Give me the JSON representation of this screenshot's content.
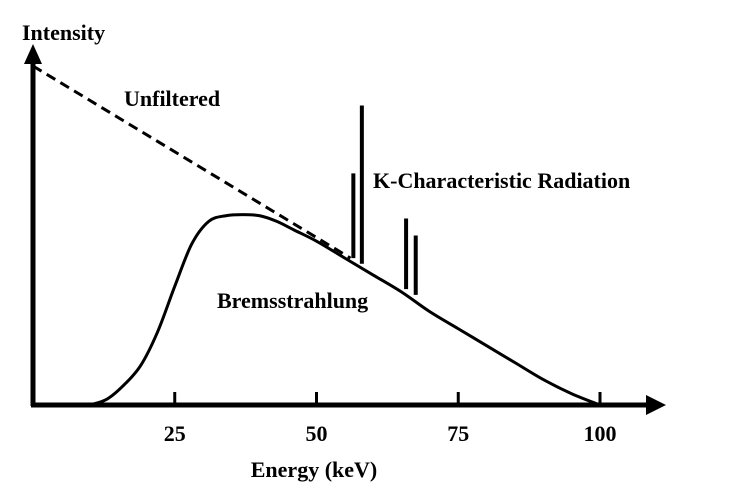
{
  "chart_data": {
    "type": "line",
    "xlabel": "Energy (keV)",
    "ylabel": "Intensity",
    "xlim": [
      0,
      110
    ],
    "x_ticks": [
      "25",
      "50",
      "75",
      "100"
    ],
    "annotations": {
      "unfiltered": "Unfiltered",
      "characteristic": "K-Characteristic Radiation",
      "bremsstrahlung": "Bremsstrahlung"
    },
    "series": [
      {
        "style": "dashed",
        "x": [
          0,
          56
        ],
        "y": [
          60,
          26
        ]
      },
      {
        "style": "solid",
        "x": [
          10,
          13,
          16,
          19,
          22,
          25,
          28,
          31,
          34,
          37,
          40,
          43,
          46,
          50,
          55,
          60,
          65,
          70,
          75,
          80,
          85,
          90,
          95,
          100
        ],
        "y": [
          0,
          1,
          3.5,
          7,
          13,
          21,
          28.5,
          32.5,
          33.5,
          33.7,
          33.5,
          32.5,
          31,
          29,
          26,
          23,
          20,
          16.5,
          13.5,
          10.5,
          7.5,
          4.5,
          2,
          0
        ]
      }
    ],
    "spikes": [
      {
        "x": 56.5,
        "base": 26,
        "top": 41
      },
      {
        "x": 58.0,
        "base": 25,
        "top": 53
      },
      {
        "x": 65.8,
        "base": 20.5,
        "top": 33
      },
      {
        "x": 67.5,
        "base": 19.5,
        "top": 30
      }
    ]
  }
}
